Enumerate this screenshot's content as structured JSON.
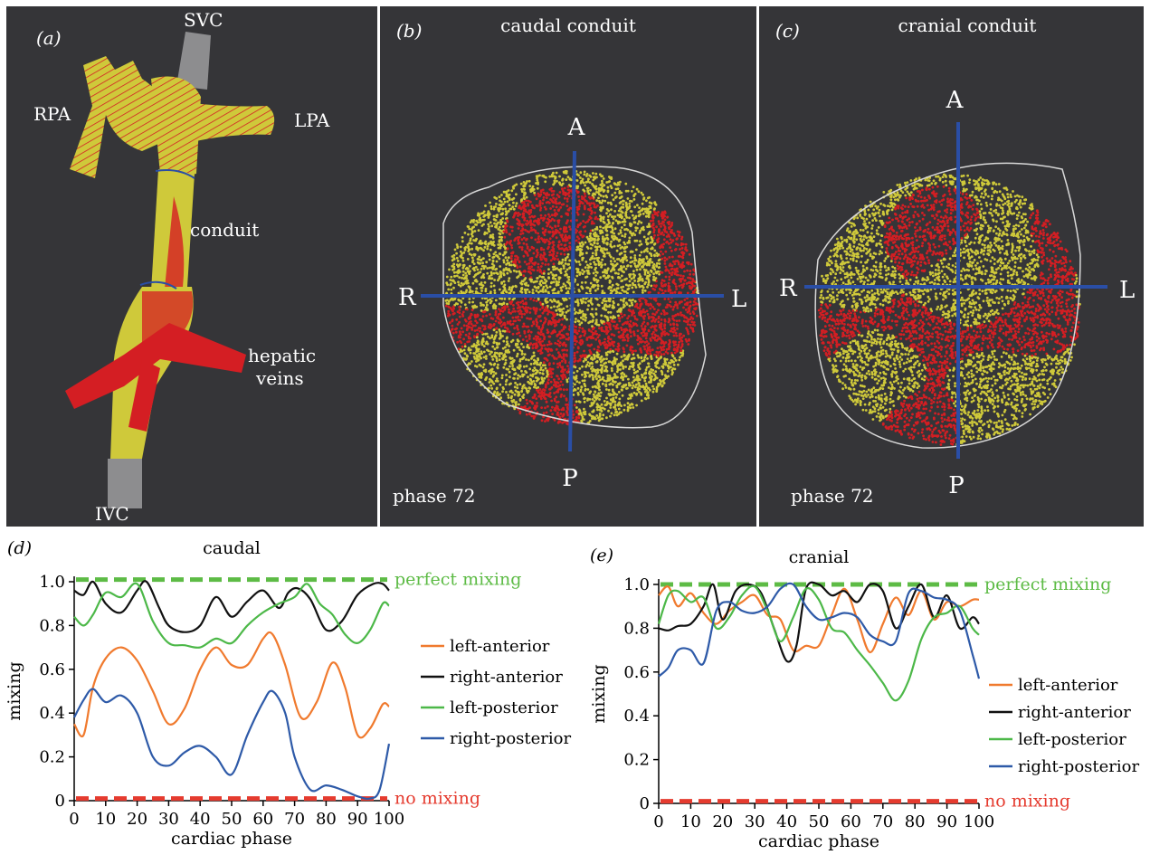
{
  "panel_a": {
    "tag": "(a)",
    "labels": {
      "svc": "SVC",
      "rpa": "RPA",
      "lpa": "LPA",
      "conduit": "conduit",
      "hepatic_1": "hepatic",
      "hepatic_2": "veins",
      "ivc": "IVC"
    }
  },
  "panel_b": {
    "tag": "(b)",
    "title": "caudal conduit",
    "phase": "phase 72",
    "axes": {
      "a": "A",
      "p": "P",
      "r": "R",
      "l": "L"
    }
  },
  "panel_c": {
    "tag": "(c)",
    "title": "cranial conduit",
    "phase": "phase 72",
    "axes": {
      "a": "A",
      "p": "P",
      "r": "R",
      "l": "L"
    }
  },
  "colors": {
    "panel_bg": "#353538",
    "yellow": "#cfc93a",
    "red": "#d41e23",
    "axis_blue": "#2a4ea6",
    "orange": "#f07a2e",
    "black": "#111111",
    "green": "#4cb848",
    "blue": "#2e5aa8",
    "ref_green": "#5dbb45",
    "ref_red": "#e53b2f"
  },
  "chart_data": [
    {
      "type": "line",
      "tag": "(d)",
      "title": "caudal",
      "xlabel": "cardiac phase",
      "ylabel": "mixing",
      "xlim": [
        0,
        100
      ],
      "ylim": [
        0,
        1.0
      ],
      "xticks": [
        0,
        10,
        20,
        30,
        40,
        50,
        60,
        70,
        80,
        90,
        100
      ],
      "yticks": [
        0,
        0.2,
        0.4,
        0.6,
        0.8,
        1.0
      ],
      "ytick_labels": [
        "0",
        "0.2",
        "0.4",
        "0.6",
        "0.8",
        "1.0"
      ],
      "reference_lines": [
        {
          "name": "perfect mixing",
          "y": 1.01,
          "color": "#5dbb45"
        },
        {
          "name": "no mixing",
          "y": 0.01,
          "color": "#e53b2f"
        }
      ],
      "legend": "right",
      "series": [
        {
          "name": "left-anterior",
          "color": "#f07a2e",
          "x": [
            0,
            3,
            6,
            10,
            15,
            20,
            25,
            30,
            35,
            40,
            45,
            50,
            55,
            60,
            63,
            67,
            72,
            77,
            82,
            86,
            90,
            94,
            98,
            100
          ],
          "y": [
            0.35,
            0.3,
            0.52,
            0.65,
            0.7,
            0.64,
            0.5,
            0.35,
            0.42,
            0.6,
            0.7,
            0.62,
            0.62,
            0.74,
            0.76,
            0.62,
            0.38,
            0.45,
            0.63,
            0.52,
            0.3,
            0.33,
            0.44,
            0.43
          ]
        },
        {
          "name": "right-anterior",
          "color": "#111111",
          "x": [
            0,
            3,
            6,
            10,
            15,
            20,
            23,
            27,
            30,
            35,
            40,
            45,
            50,
            55,
            60,
            65,
            68,
            71,
            75,
            80,
            85,
            90,
            95,
            98,
            100
          ],
          "y": [
            0.96,
            0.94,
            1.0,
            0.9,
            0.86,
            0.96,
            1.0,
            0.88,
            0.8,
            0.77,
            0.8,
            0.93,
            0.84,
            0.91,
            0.96,
            0.88,
            0.95,
            0.97,
            0.92,
            0.78,
            0.82,
            0.94,
            0.99,
            0.99,
            0.96
          ]
        },
        {
          "name": "left-posterior",
          "color": "#4cb848",
          "x": [
            0,
            3,
            6,
            10,
            15,
            20,
            25,
            30,
            35,
            40,
            45,
            50,
            55,
            60,
            65,
            70,
            74,
            78,
            82,
            86,
            90,
            94,
            98,
            100
          ],
          "y": [
            0.84,
            0.8,
            0.85,
            0.95,
            0.93,
            0.99,
            0.82,
            0.72,
            0.71,
            0.7,
            0.74,
            0.72,
            0.8,
            0.86,
            0.9,
            0.93,
            0.99,
            0.9,
            0.85,
            0.76,
            0.72,
            0.78,
            0.9,
            0.89
          ]
        },
        {
          "name": "right-posterior",
          "color": "#2e5aa8",
          "x": [
            0,
            3,
            6,
            10,
            15,
            20,
            25,
            30,
            35,
            40,
            45,
            50,
            55,
            60,
            63,
            67,
            70,
            75,
            80,
            85,
            90,
            94,
            97,
            100
          ],
          "y": [
            0.38,
            0.46,
            0.51,
            0.45,
            0.48,
            0.4,
            0.2,
            0.16,
            0.22,
            0.25,
            0.2,
            0.12,
            0.3,
            0.45,
            0.5,
            0.4,
            0.2,
            0.05,
            0.07,
            0.05,
            0.02,
            0.01,
            0.05,
            0.26
          ]
        }
      ]
    },
    {
      "type": "line",
      "tag": "(e)",
      "title": "cranial",
      "xlabel": "cardiac phase",
      "ylabel": "mixing",
      "xlim": [
        0,
        100
      ],
      "ylim": [
        0,
        1.0
      ],
      "xticks": [
        0,
        10,
        20,
        30,
        40,
        50,
        60,
        70,
        80,
        90,
        100
      ],
      "yticks": [
        0,
        0.2,
        0.4,
        0.6,
        0.8,
        1.0
      ],
      "ytick_labels": [
        "0",
        "0.2",
        "0.4",
        "0.6",
        "0.8",
        "1.0"
      ],
      "reference_lines": [
        {
          "name": "perfect mixing",
          "y": 1.0,
          "color": "#5dbb45"
        },
        {
          "name": "no mixing",
          "y": 0.01,
          "color": "#e53b2f"
        }
      ],
      "legend": "right",
      "series": [
        {
          "name": "left-anterior",
          "color": "#f07a2e",
          "x": [
            0,
            3,
            6,
            10,
            14,
            18,
            22,
            26,
            30,
            34,
            38,
            42,
            46,
            50,
            54,
            58,
            62,
            66,
            70,
            74,
            78,
            82,
            86,
            90,
            94,
            98,
            100
          ],
          "y": [
            0.95,
            0.99,
            0.9,
            0.96,
            0.87,
            0.82,
            0.88,
            0.92,
            0.95,
            0.86,
            0.84,
            0.7,
            0.72,
            0.72,
            0.86,
            0.98,
            0.84,
            0.69,
            0.82,
            0.94,
            0.86,
            0.97,
            0.84,
            0.92,
            0.9,
            0.93,
            0.93
          ]
        },
        {
          "name": "right-anterior",
          "color": "#111111",
          "x": [
            0,
            3,
            6,
            10,
            14,
            17,
            20,
            24,
            28,
            32,
            36,
            40,
            43,
            46,
            50,
            54,
            58,
            62,
            66,
            70,
            74,
            78,
            82,
            86,
            90,
            94,
            98,
            100
          ],
          "y": [
            0.8,
            0.79,
            0.81,
            0.82,
            0.9,
            1.0,
            0.84,
            0.97,
            1.0,
            0.96,
            0.8,
            0.65,
            0.72,
            0.98,
            1.0,
            0.95,
            0.97,
            0.92,
            1.0,
            0.97,
            0.8,
            0.9,
            1.0,
            0.85,
            0.95,
            0.8,
            0.85,
            0.82
          ]
        },
        {
          "name": "left-posterior",
          "color": "#4cb848",
          "x": [
            0,
            3,
            6,
            10,
            14,
            18,
            22,
            26,
            30,
            34,
            38,
            42,
            46,
            50,
            54,
            58,
            62,
            66,
            70,
            74,
            78,
            82,
            86,
            90,
            94,
            98,
            100
          ],
          "y": [
            0.82,
            0.95,
            0.97,
            0.92,
            0.94,
            0.8,
            0.85,
            0.95,
            0.99,
            0.88,
            0.74,
            0.85,
            0.98,
            0.93,
            0.8,
            0.78,
            0.7,
            0.63,
            0.55,
            0.47,
            0.56,
            0.75,
            0.85,
            0.87,
            0.9,
            0.8,
            0.77
          ]
        },
        {
          "name": "right-posterior",
          "color": "#2e5aa8",
          "x": [
            0,
            3,
            6,
            10,
            14,
            18,
            22,
            26,
            30,
            34,
            38,
            42,
            46,
            50,
            54,
            58,
            62,
            66,
            70,
            74,
            78,
            82,
            86,
            90,
            94,
            98,
            100
          ],
          "y": [
            0.58,
            0.62,
            0.7,
            0.7,
            0.64,
            0.88,
            0.92,
            0.88,
            0.87,
            0.9,
            0.98,
            1.0,
            0.9,
            0.84,
            0.85,
            0.87,
            0.85,
            0.77,
            0.74,
            0.74,
            0.96,
            0.97,
            0.94,
            0.93,
            0.88,
            0.68,
            0.57
          ]
        }
      ]
    }
  ]
}
